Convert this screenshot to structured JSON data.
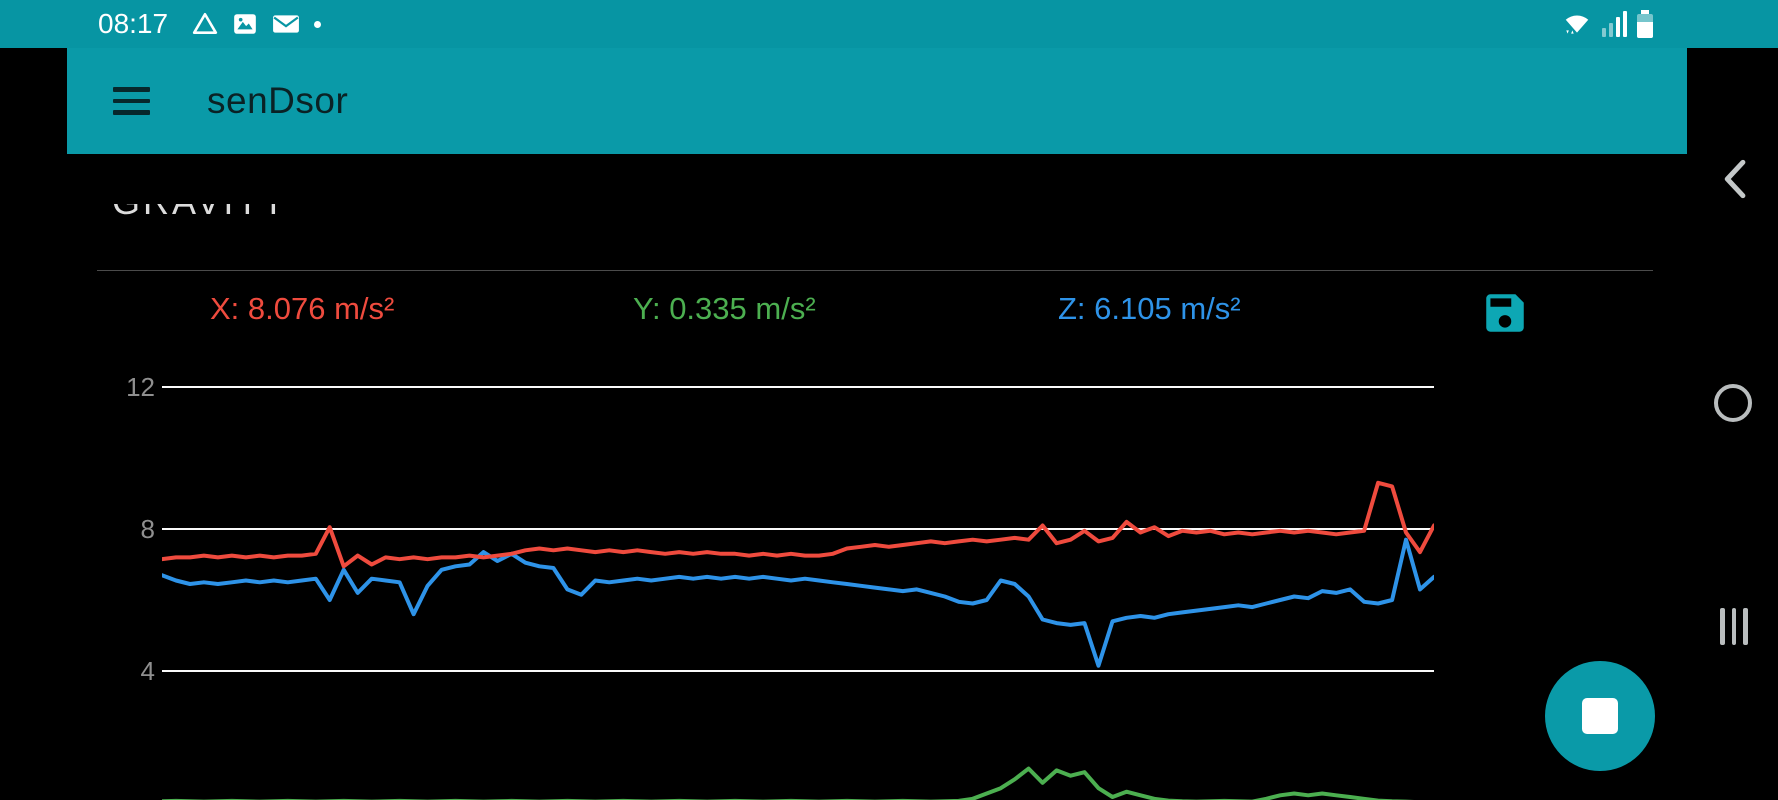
{
  "status_bar": {
    "time": "08:17",
    "left_icons": [
      "drive-icon",
      "screenshot-icon",
      "email-icon",
      "notification-dot"
    ],
    "right_icons": [
      "wifi-icon",
      "signal-icon",
      "battery-icon"
    ]
  },
  "app_bar": {
    "title": "senDsor"
  },
  "section": {
    "clipped_title": "GRAVITY"
  },
  "readings": {
    "x": "X: 8.076 m/s²",
    "y": "Y: 0.335 m/s²",
    "z": "Z: 6.105 m/s²"
  },
  "colors": {
    "teal_accent": "#0a9aa8",
    "status_bar_teal": "#0795a3",
    "x_red": "#ef4b3e",
    "y_green": "#4caf50",
    "z_blue": "#2e93e8",
    "grid_white": "#fafafa",
    "tick_gray": "#8f8f8f"
  },
  "chart_data": {
    "type": "line",
    "title": "",
    "xlabel": "",
    "ylabel": "m/s²",
    "yticks": [
      12,
      8,
      4
    ],
    "ylim": [
      0,
      14
    ],
    "grid": true,
    "legend": "none",
    "series": [
      {
        "name": "X",
        "color": "#ef4b3e",
        "values": [
          7.15,
          7.2,
          7.2,
          7.25,
          7.2,
          7.25,
          7.2,
          7.25,
          7.2,
          7.25,
          7.25,
          7.3,
          8.05,
          6.95,
          7.25,
          7.0,
          7.2,
          7.15,
          7.2,
          7.15,
          7.2,
          7.2,
          7.25,
          7.2,
          7.25,
          7.3,
          7.4,
          7.45,
          7.4,
          7.45,
          7.4,
          7.35,
          7.4,
          7.35,
          7.4,
          7.35,
          7.3,
          7.35,
          7.3,
          7.35,
          7.3,
          7.3,
          7.25,
          7.3,
          7.25,
          7.3,
          7.25,
          7.25,
          7.3,
          7.45,
          7.5,
          7.55,
          7.5,
          7.55,
          7.6,
          7.65,
          7.6,
          7.65,
          7.7,
          7.65,
          7.7,
          7.75,
          7.7,
          8.1,
          7.6,
          7.7,
          7.95,
          7.65,
          7.75,
          8.2,
          7.9,
          8.05,
          7.8,
          7.95,
          7.9,
          7.95,
          7.85,
          7.9,
          7.85,
          7.9,
          7.95,
          7.9,
          7.95,
          7.9,
          7.85,
          7.9,
          7.95,
          9.3,
          9.2,
          7.9,
          7.35,
          8.1
        ]
      },
      {
        "name": "Y",
        "color": "#4caf50",
        "values": [
          0.33,
          0.34,
          0.33,
          0.32,
          0.33,
          0.34,
          0.33,
          0.32,
          0.33,
          0.34,
          0.33,
          0.32,
          0.33,
          0.34,
          0.33,
          0.32,
          0.33,
          0.34,
          0.33,
          0.32,
          0.33,
          0.34,
          0.33,
          0.32,
          0.33,
          0.34,
          0.33,
          0.32,
          0.33,
          0.34,
          0.33,
          0.32,
          0.33,
          0.34,
          0.33,
          0.32,
          0.33,
          0.34,
          0.33,
          0.32,
          0.33,
          0.34,
          0.33,
          0.32,
          0.33,
          0.34,
          0.33,
          0.32,
          0.33,
          0.34,
          0.33,
          0.32,
          0.33,
          0.34,
          0.33,
          0.32,
          0.33,
          0.34,
          0.4,
          0.55,
          0.7,
          0.95,
          1.25,
          0.85,
          1.2,
          1.05,
          1.15,
          0.7,
          0.45,
          0.6,
          0.5,
          0.4,
          0.35,
          0.33,
          0.32,
          0.33,
          0.34,
          0.33,
          0.32,
          0.4,
          0.5,
          0.55,
          0.5,
          0.55,
          0.5,
          0.45,
          0.4,
          0.35,
          0.33,
          0.32,
          0.3,
          0.3
        ]
      },
      {
        "name": "Z",
        "color": "#2e93e8",
        "values": [
          6.7,
          6.55,
          6.45,
          6.5,
          6.45,
          6.5,
          6.55,
          6.5,
          6.55,
          6.5,
          6.55,
          6.6,
          6.0,
          6.85,
          6.2,
          6.6,
          6.55,
          6.5,
          5.6,
          6.4,
          6.85,
          6.95,
          7.0,
          7.35,
          7.1,
          7.3,
          7.05,
          6.95,
          6.9,
          6.3,
          6.15,
          6.55,
          6.5,
          6.55,
          6.6,
          6.55,
          6.6,
          6.65,
          6.6,
          6.65,
          6.6,
          6.65,
          6.6,
          6.65,
          6.6,
          6.55,
          6.6,
          6.55,
          6.5,
          6.45,
          6.4,
          6.35,
          6.3,
          6.25,
          6.3,
          6.2,
          6.1,
          5.95,
          5.9,
          6.0,
          6.55,
          6.45,
          6.1,
          5.45,
          5.35,
          5.3,
          5.35,
          4.15,
          5.4,
          5.5,
          5.55,
          5.5,
          5.6,
          5.65,
          5.7,
          5.75,
          5.8,
          5.85,
          5.8,
          5.9,
          6.0,
          6.1,
          6.05,
          6.25,
          6.2,
          6.3,
          5.95,
          5.9,
          6.0,
          7.7,
          6.3,
          6.65
        ]
      }
    ]
  },
  "nav": {
    "back": "back",
    "home": "home",
    "recents": "recents"
  },
  "fab": {
    "action": "stop-recording"
  }
}
